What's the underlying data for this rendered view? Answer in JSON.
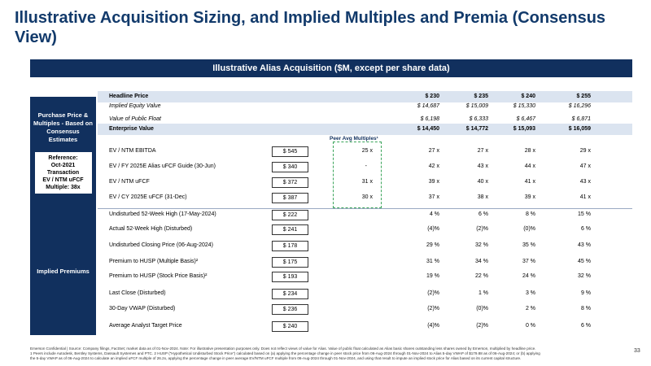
{
  "title": "Illustrative Acquisition Sizing, and Implied Multiples and Premia (Consensus View)",
  "banner": "Illustrative Alias Acquisition ($M, except per share data)",
  "sections": {
    "purchase": {
      "label": "Purchase Price & Multiples - Based on Consensus Estimates",
      "reference": [
        "Reference:",
        "Oct-2021",
        "Transaction",
        "EV / NTM uFCF",
        "Multiple: 38x"
      ]
    },
    "premiums": {
      "label": "Implied Premiums"
    }
  },
  "peer_label": "Peer Avg Multiples¹",
  "header": {
    "label": "Headline Price",
    "prices": [
      "$ 230",
      "$ 235",
      "$ 240",
      "$ 255"
    ]
  },
  "equity": {
    "label": "Implied Equity Value",
    "values": [
      "$ 14,687",
      "$ 15,009",
      "$ 15,330",
      "$ 16,296"
    ]
  },
  "float": {
    "label": "Value of Public Float",
    "values": [
      "$ 6,198",
      "$ 6,333",
      "$ 6,467",
      "$ 6,871"
    ]
  },
  "ev": {
    "label": "Enterprise Value",
    "values": [
      "$ 14,450",
      "$ 14,772",
      "$ 15,093",
      "$ 16,059"
    ]
  },
  "multiples": [
    {
      "label": "EV / NTM EBITDA",
      "base": "$ 545",
      "peer": "25 x",
      "values": [
        "27 x",
        "27 x",
        "28 x",
        "29 x"
      ]
    },
    {
      "label": "EV / FY 2025E Alias uFCF Guide (30-Jun)",
      "base": "$ 340",
      "peer": "-",
      "values": [
        "42 x",
        "43 x",
        "44 x",
        "47 x"
      ]
    },
    {
      "label": "EV / NTM uFCF",
      "base": "$ 372",
      "peer": "31 x",
      "values": [
        "39 x",
        "40 x",
        "41 x",
        "43 x"
      ]
    },
    {
      "label": "EV / CY 2025E uFCF (31-Dec)",
      "base": "$ 387",
      "peer": "30 x",
      "values": [
        "37 x",
        "38 x",
        "39 x",
        "41 x"
      ]
    }
  ],
  "premiums": [
    {
      "label": "Undisturbed 52-Week High (17-May-2024)",
      "base": "$ 222",
      "values": [
        "4 %",
        "6 %",
        "8 %",
        "15 %"
      ]
    },
    {
      "label": "Actual 52-Week High (Disturbed)",
      "base": "$ 241",
      "values": [
        "(4)%",
        "(2)%",
        "(0)%",
        "6 %"
      ]
    },
    {
      "label": "Undisturbed Closing Price (06-Aug-2024)",
      "base": "$ 178",
      "values": [
        "29 %",
        "32 %",
        "35 %",
        "43 %"
      ]
    },
    {
      "label": "Premium to HUSP (Multiple Basis)²",
      "base": "$ 175",
      "values": [
        "31 %",
        "34 %",
        "37 %",
        "45 %"
      ]
    },
    {
      "label": "Premium to HUSP (Stock Price Basis)²",
      "base": "$ 193",
      "values": [
        "19 %",
        "22 %",
        "24 %",
        "32 %"
      ]
    },
    {
      "label": "Last Close (Disturbed)",
      "base": "$ 234",
      "values": [
        "(2)%",
        "1 %",
        "3 %",
        "9 %"
      ]
    },
    {
      "label": "30-Day VWAP (Disturbed)",
      "base": "$ 236",
      "values": [
        "(2)%",
        "(0)%",
        "2 %",
        "8 %"
      ]
    },
    {
      "label": "Average Analyst Target Price",
      "base": "$ 240",
      "values": [
        "(4)%",
        "(2)%",
        "0 %",
        "6 %"
      ]
    }
  ],
  "footnote": [
    "Emerson Confidential | Source: Company filings, FactSet; market data as of 01-Nov-2024. Note: For illustrative presentation purposes only. Does not reflect views of value for Alias. Value of public float calculated as Alias basic shares outstanding less shares owned by Emerson, multiplied by headline price.",
    "1 Peers include Autodesk, Bentley Systems, Dassault Systemes and PTC. 2 HUSP (“Hypothetical Undisturbed Stock Price”) calculated based on (a) applying the percentage change in peer stock price from 06-Aug-2024 through 01-Nov-2024 to Alias 5-day VWAP of $179.88 as of 06-Aug-2024; or (b) applying",
    "the 5-day VWAP as of 06-Aug-2024 to calculate an implied uFCF multiple of 26.2x, applying the percentage change in peer average EV/NTM uFCF multiple from 06-Aug-2024 through 01-Nov-2024, and using that result to impute an implied stock price for Alias based on its current capital structure."
  ],
  "page_number": "33"
}
